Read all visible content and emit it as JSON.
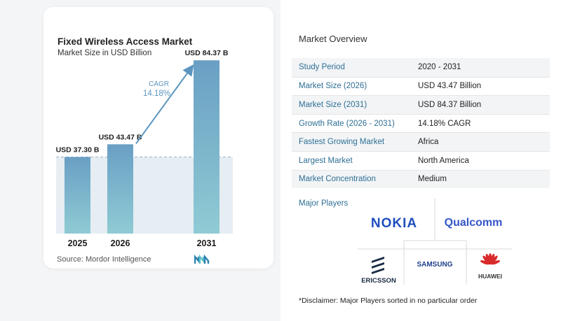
{
  "chart_data": {
    "type": "bar",
    "title": "Fixed Wireless Access Market",
    "subtitle": "Market Size in USD Billion",
    "categories": [
      "2025",
      "2026",
      "2031"
    ],
    "values": [
      37.3,
      43.47,
      84.37
    ],
    "data_labels": [
      "USD 37.30 B",
      "USD 43.47 B",
      "USD 84.37 B"
    ],
    "ylim": [
      0,
      95
    ],
    "cagr_label": "CAGR",
    "cagr_value": "14.18%",
    "colors": {
      "bar_top": "#6a9fc4",
      "bar_bottom": "#8fcbd4",
      "band": "#e6edf3",
      "arrow": "#5b95bf"
    }
  },
  "source": "Source:  Mordor Intelligence",
  "overview": {
    "title": "Market Overview",
    "rows": [
      {
        "label": "Study Period",
        "value": "2020 - 2031"
      },
      {
        "label": "Market Size (2026)",
        "value": "USD 43.47 Billion"
      },
      {
        "label": "Market Size (2031)",
        "value": "USD 84.37 Billion"
      },
      {
        "label": "Growth Rate (2026 - 2031)",
        "value": "14.18% CAGR"
      },
      {
        "label": "Fastest Growing Market",
        "value": "Africa"
      },
      {
        "label": "Largest Market",
        "value": "North America"
      },
      {
        "label": "Market Concentration",
        "value": "Medium"
      }
    ],
    "players_title": "Major Players",
    "players": [
      "NOKIA",
      "Qualcomm",
      "ERICSSON",
      "SAMSUNG",
      "HUAWEI"
    ],
    "disclaimer": "*Disclaimer: Major Players sorted in no particular order"
  },
  "accent": "#2e6f95"
}
